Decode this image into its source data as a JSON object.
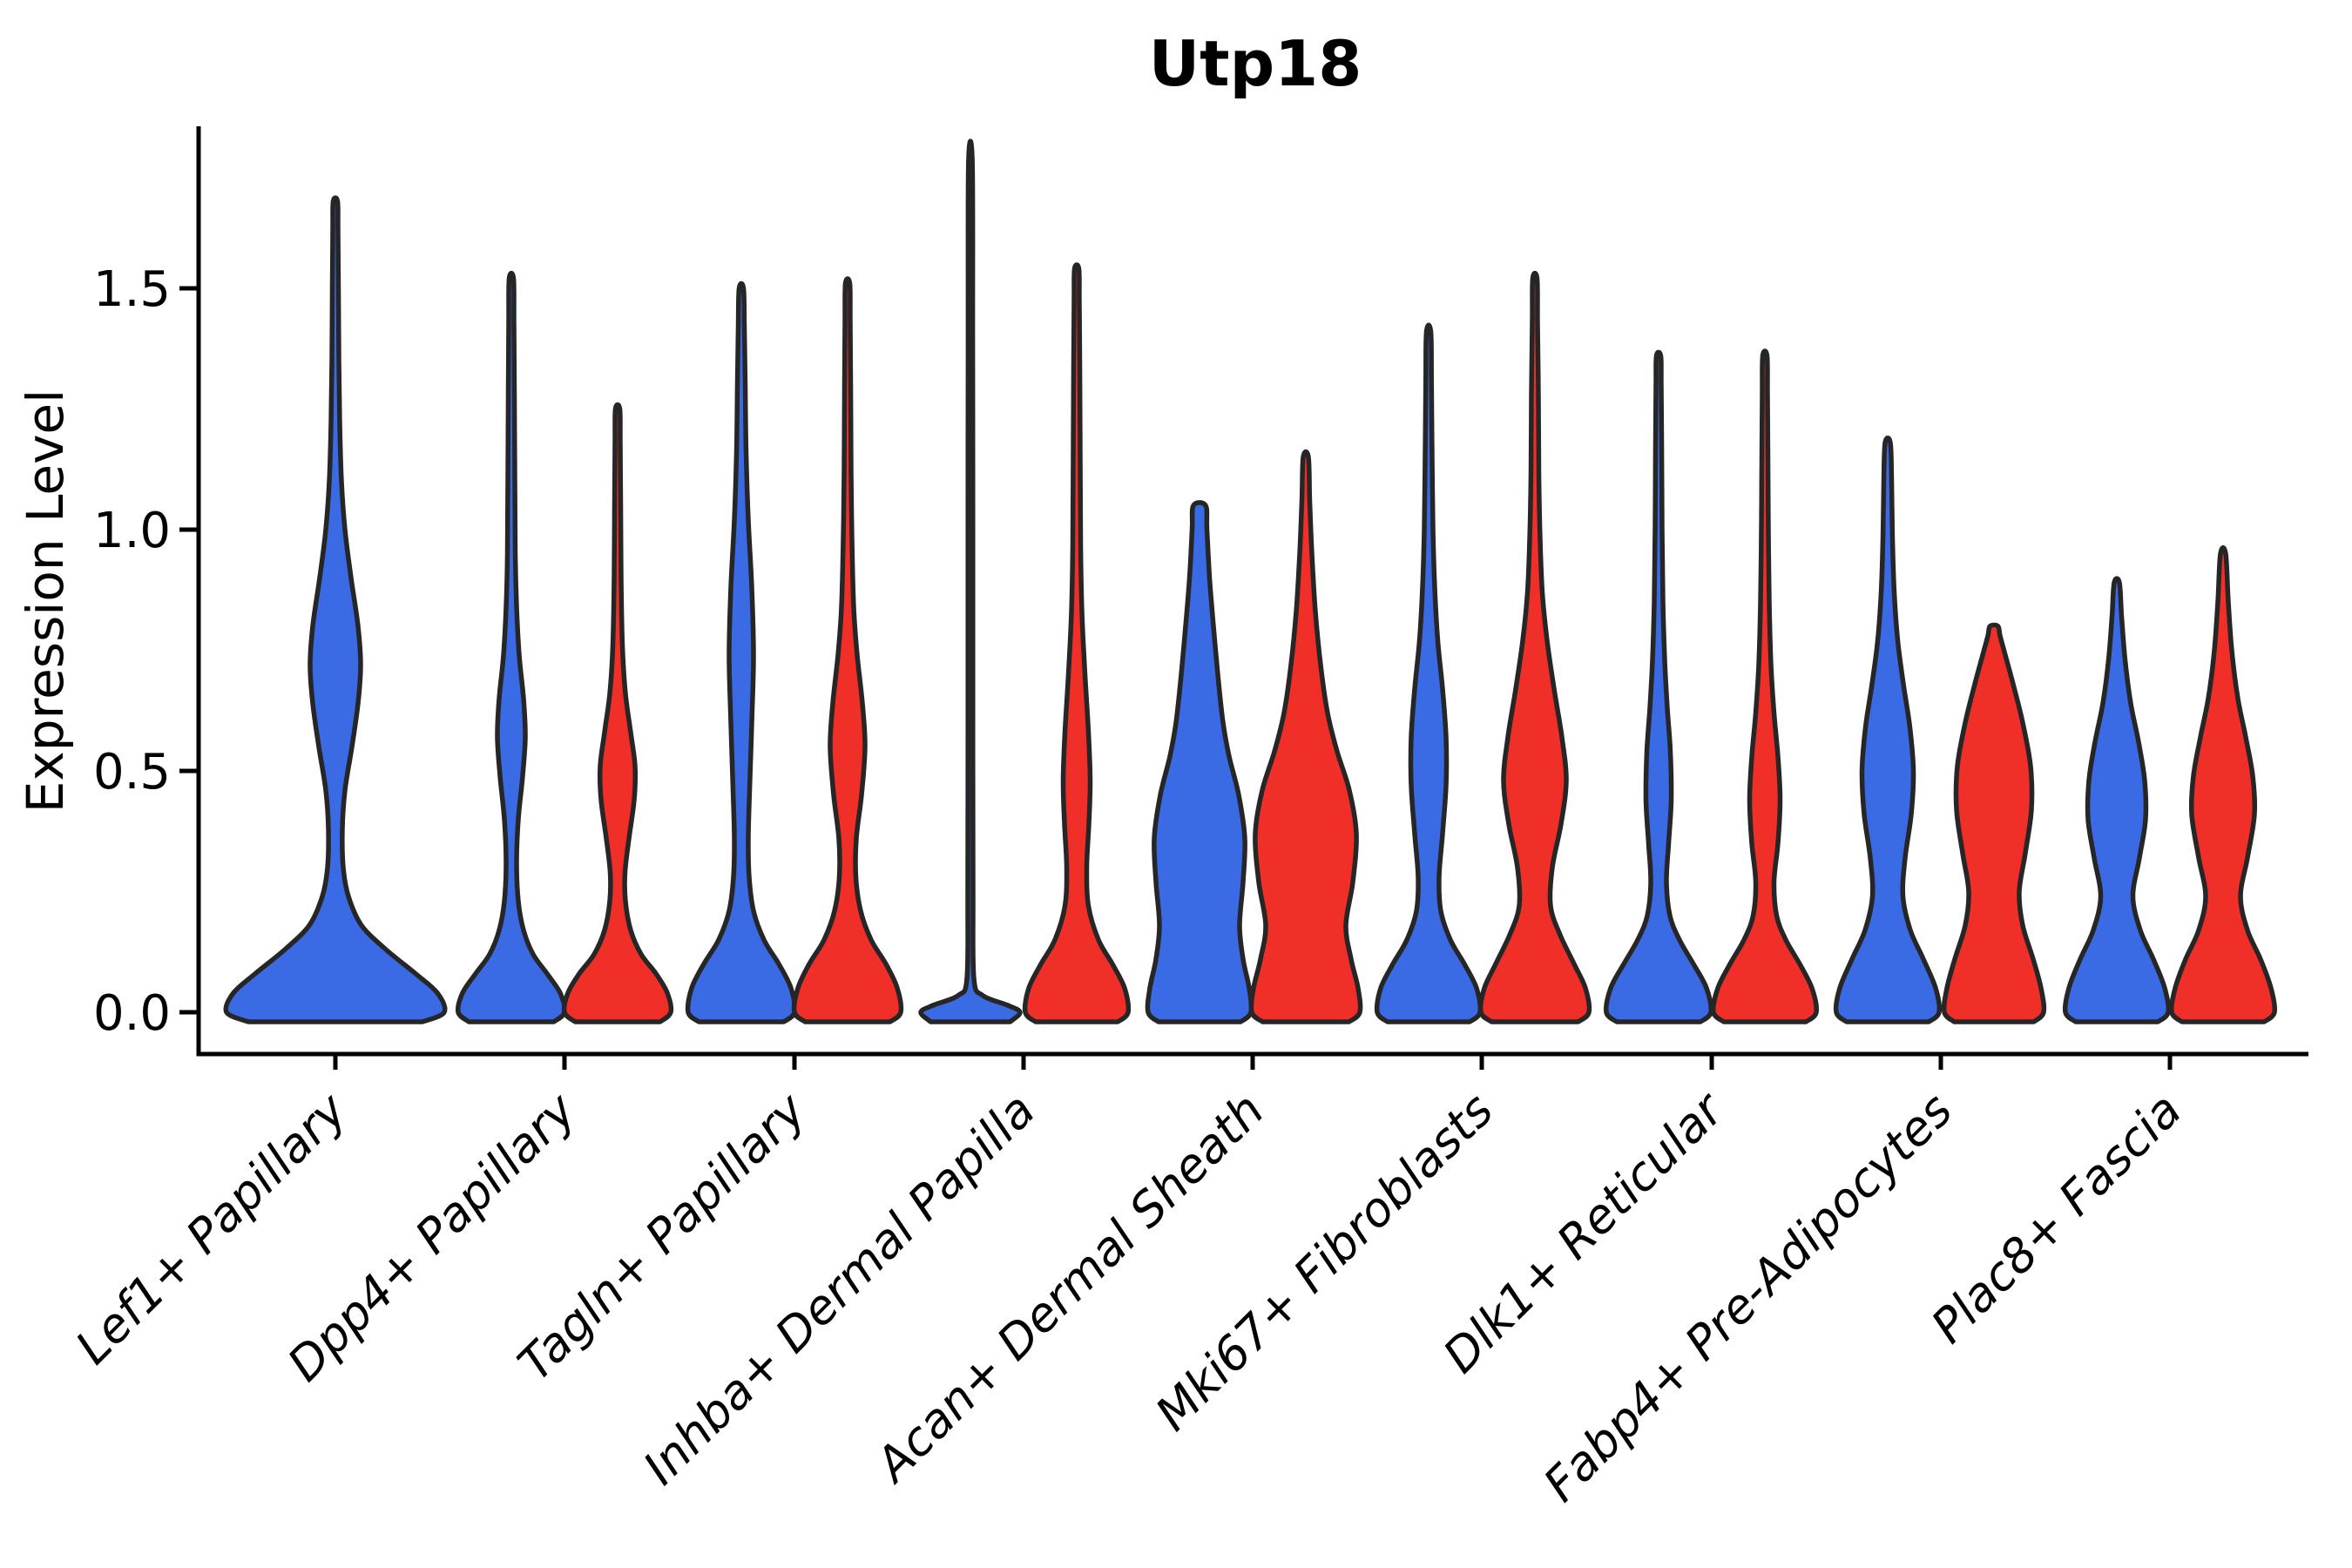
{
  "figure": {
    "background": "#ffffff",
    "axis_color": "#000000",
    "violin_edge_color": "#262626"
  },
  "chart_data": {
    "type": "violin",
    "title": "Utp18",
    "xlabel": "",
    "ylabel": "Expression Level",
    "ylim": [
      -0.09,
      1.84
    ],
    "y_ticks": [
      "0.0",
      "0.5",
      "1.0",
      "1.5"
    ],
    "grid": false,
    "legend": "none",
    "categories": [
      "Lef1+ Papillary",
      "Dpp4+ Papillary",
      "Tagln+ Papillary",
      "Inhba+ Dermal Papilla",
      "Acan+ Dermal Sheath",
      "Mki67+ Fibroblasts",
      "Dlk1+ Reticular",
      "Fabp4+ Pre-Adipocytes",
      "Plac8+ Fascia"
    ],
    "groups": [
      {
        "id": "blue",
        "color": "#3B6AE5"
      },
      {
        "id": "red",
        "color": "#F03028"
      }
    ],
    "profile_format": "[expression_level, half_width_px]",
    "violins": [
      {
        "category": "Lef1+ Papillary",
        "group": "blue",
        "span": "full",
        "peak_expression": 1.68,
        "profile": [
          [
            0,
            125
          ],
          [
            0.04,
            117
          ],
          [
            0.08,
            92
          ],
          [
            0.13,
            58
          ],
          [
            0.18,
            30
          ],
          [
            0.24,
            15
          ],
          [
            0.3,
            9
          ],
          [
            0.38,
            8
          ],
          [
            0.46,
            11
          ],
          [
            0.55,
            19
          ],
          [
            0.64,
            26
          ],
          [
            0.72,
            29
          ],
          [
            0.8,
            26
          ],
          [
            0.9,
            18
          ],
          [
            1.0,
            11
          ],
          [
            1.1,
            7
          ],
          [
            1.22,
            5
          ],
          [
            1.35,
            4
          ],
          [
            1.5,
            3.5
          ],
          [
            1.62,
            3
          ],
          [
            1.68,
            2.5
          ]
        ]
      },
      {
        "category": "Dpp4+ Papillary",
        "group": "blue",
        "span": "half",
        "peak_expression": 1.52,
        "profile": [
          [
            0,
            61
          ],
          [
            0.04,
            56
          ],
          [
            0.08,
            41
          ],
          [
            0.12,
            25
          ],
          [
            0.17,
            14
          ],
          [
            0.23,
            8
          ],
          [
            0.31,
            6
          ],
          [
            0.4,
            8
          ],
          [
            0.49,
            13
          ],
          [
            0.57,
            16
          ],
          [
            0.65,
            14
          ],
          [
            0.74,
            9
          ],
          [
            0.84,
            6
          ],
          [
            0.95,
            4.5
          ],
          [
            1.1,
            4
          ],
          [
            1.28,
            3.5
          ],
          [
            1.43,
            3
          ],
          [
            1.52,
            2.5
          ]
        ]
      },
      {
        "category": "Dpp4+ Papillary",
        "group": "red",
        "span": "half",
        "peak_expression": 1.25,
        "profile": [
          [
            0,
            61
          ],
          [
            0.04,
            57
          ],
          [
            0.08,
            44
          ],
          [
            0.12,
            27
          ],
          [
            0.17,
            15
          ],
          [
            0.23,
            9
          ],
          [
            0.29,
            8.5
          ],
          [
            0.36,
            13
          ],
          [
            0.44,
            19
          ],
          [
            0.51,
            20
          ],
          [
            0.58,
            15
          ],
          [
            0.66,
            9
          ],
          [
            0.76,
            5.5
          ],
          [
            0.9,
            4
          ],
          [
            1.05,
            3.5
          ],
          [
            1.18,
            3
          ],
          [
            1.25,
            2.5
          ]
        ]
      },
      {
        "category": "Tagln+ Papillary",
        "group": "blue",
        "span": "half",
        "peak_expression": 1.5,
        "profile": [
          [
            0,
            61
          ],
          [
            0.05,
            57
          ],
          [
            0.1,
            43
          ],
          [
            0.15,
            26
          ],
          [
            0.21,
            14
          ],
          [
            0.28,
            9
          ],
          [
            0.36,
            8
          ],
          [
            0.46,
            9.5
          ],
          [
            0.6,
            12
          ],
          [
            0.74,
            14
          ],
          [
            0.88,
            12
          ],
          [
            1.02,
            8
          ],
          [
            1.16,
            5.5
          ],
          [
            1.3,
            4.5
          ],
          [
            1.42,
            3.5
          ],
          [
            1.5,
            2.5
          ]
        ]
      },
      {
        "category": "Tagln+ Papillary",
        "group": "red",
        "span": "half",
        "peak_expression": 1.51,
        "profile": [
          [
            0,
            61
          ],
          [
            0.05,
            57
          ],
          [
            0.1,
            44
          ],
          [
            0.15,
            27
          ],
          [
            0.21,
            15
          ],
          [
            0.28,
            9.5
          ],
          [
            0.36,
            10
          ],
          [
            0.45,
            16
          ],
          [
            0.55,
            20
          ],
          [
            0.64,
            17
          ],
          [
            0.74,
            11
          ],
          [
            0.84,
            7
          ],
          [
            0.98,
            5
          ],
          [
            1.12,
            4
          ],
          [
            1.3,
            3.5
          ],
          [
            1.43,
            3
          ],
          [
            1.51,
            2.5
          ]
        ]
      },
      {
        "category": "Inhba+ Dermal Papilla",
        "group": "blue",
        "span": "half",
        "peak_expression": 1.76,
        "profile": [
          [
            0,
            57
          ],
          [
            0.015,
            42
          ],
          [
            0.035,
            14
          ],
          [
            0.07,
            4
          ],
          [
            0.25,
            3
          ],
          [
            0.6,
            2.8
          ],
          [
            1.0,
            2.8
          ],
          [
            1.4,
            2.6
          ],
          [
            1.76,
            2.2
          ]
        ]
      },
      {
        "category": "Inhba+ Dermal Papilla",
        "group": "red",
        "span": "half",
        "peak_expression": 1.54,
        "profile": [
          [
            0,
            59
          ],
          [
            0.05,
            55
          ],
          [
            0.1,
            41
          ],
          [
            0.15,
            25
          ],
          [
            0.22,
            13.5
          ],
          [
            0.3,
            11.5
          ],
          [
            0.39,
            14
          ],
          [
            0.48,
            15.5
          ],
          [
            0.58,
            13.5
          ],
          [
            0.7,
            9.5
          ],
          [
            0.83,
            6
          ],
          [
            0.97,
            4.5
          ],
          [
            1.15,
            4
          ],
          [
            1.35,
            3.5
          ],
          [
            1.47,
            3
          ],
          [
            1.54,
            2.5
          ]
        ]
      },
      {
        "category": "Acan+ Dermal Sheath",
        "group": "blue",
        "span": "half",
        "peak_expression": 1.05,
        "profile": [
          [
            0,
            59
          ],
          [
            0.05,
            57
          ],
          [
            0.11,
            50
          ],
          [
            0.18,
            46
          ],
          [
            0.27,
            50
          ],
          [
            0.36,
            52
          ],
          [
            0.45,
            45
          ],
          [
            0.53,
            34
          ],
          [
            0.6,
            27
          ],
          [
            0.7,
            21
          ],
          [
            0.8,
            16
          ],
          [
            0.9,
            11.5
          ],
          [
            1.0,
            8.5
          ],
          [
            1.05,
            7
          ]
        ]
      },
      {
        "category": "Acan+ Dermal Sheath",
        "group": "red",
        "span": "half",
        "peak_expression": 1.15,
        "profile": [
          [
            0,
            62
          ],
          [
            0.05,
            60
          ],
          [
            0.11,
            52
          ],
          [
            0.18,
            46
          ],
          [
            0.27,
            54
          ],
          [
            0.37,
            58
          ],
          [
            0.46,
            50
          ],
          [
            0.54,
            36
          ],
          [
            0.62,
            25
          ],
          [
            0.72,
            17
          ],
          [
            0.83,
            11
          ],
          [
            0.95,
            7
          ],
          [
            1.06,
            4.5
          ],
          [
            1.15,
            3
          ]
        ]
      },
      {
        "category": "Mki67+ Fibroblasts",
        "group": "blue",
        "span": "half",
        "peak_expression": 1.41,
        "profile": [
          [
            0,
            59
          ],
          [
            0.05,
            55
          ],
          [
            0.1,
            41
          ],
          [
            0.15,
            25
          ],
          [
            0.21,
            14
          ],
          [
            0.28,
            12
          ],
          [
            0.37,
            16
          ],
          [
            0.47,
            20
          ],
          [
            0.57,
            20
          ],
          [
            0.67,
            16
          ],
          [
            0.77,
            10.5
          ],
          [
            0.88,
            7
          ],
          [
            1.0,
            5
          ],
          [
            1.15,
            4
          ],
          [
            1.3,
            3.3
          ],
          [
            1.41,
            2.5
          ]
        ]
      },
      {
        "category": "Mki67+ Fibroblasts",
        "group": "red",
        "span": "half",
        "peak_expression": 1.52,
        "profile": [
          [
            0,
            62
          ],
          [
            0.05,
            58
          ],
          [
            0.1,
            45
          ],
          [
            0.16,
            29
          ],
          [
            0.22,
            18
          ],
          [
            0.3,
            20
          ],
          [
            0.39,
            30
          ],
          [
            0.48,
            36
          ],
          [
            0.57,
            31
          ],
          [
            0.67,
            22
          ],
          [
            0.77,
            14
          ],
          [
            0.87,
            8.5
          ],
          [
            0.98,
            6
          ],
          [
            1.12,
            4.5
          ],
          [
            1.28,
            4
          ],
          [
            1.43,
            3
          ],
          [
            1.52,
            2.5
          ]
        ]
      },
      {
        "category": "Dlk1+ Reticular",
        "group": "blue",
        "span": "half",
        "peak_expression": 1.36,
        "profile": [
          [
            0,
            60
          ],
          [
            0.05,
            55
          ],
          [
            0.1,
            40
          ],
          [
            0.15,
            24
          ],
          [
            0.2,
            13
          ],
          [
            0.27,
            9
          ],
          [
            0.35,
            11.5
          ],
          [
            0.44,
            14.5
          ],
          [
            0.54,
            13.5
          ],
          [
            0.63,
            10
          ],
          [
            0.73,
            7
          ],
          [
            0.85,
            5
          ],
          [
            1.0,
            4
          ],
          [
            1.18,
            3.5
          ],
          [
            1.3,
            3
          ],
          [
            1.36,
            2.5
          ]
        ]
      },
      {
        "category": "Dlk1+ Reticular",
        "group": "red",
        "span": "half",
        "peak_expression": 1.36,
        "profile": [
          [
            0,
            59
          ],
          [
            0.05,
            54
          ],
          [
            0.1,
            40
          ],
          [
            0.15,
            24
          ],
          [
            0.2,
            13.5
          ],
          [
            0.27,
            10.5
          ],
          [
            0.35,
            15
          ],
          [
            0.44,
            17.5
          ],
          [
            0.53,
            15
          ],
          [
            0.62,
            10.5
          ],
          [
            0.72,
            7
          ],
          [
            0.85,
            5
          ],
          [
            1.0,
            4
          ],
          [
            1.15,
            3.5
          ],
          [
            1.28,
            3
          ],
          [
            1.36,
            2.5
          ]
        ]
      },
      {
        "category": "Fabp4+ Pre-Adipocytes",
        "group": "blue",
        "span": "half",
        "peak_expression": 1.18,
        "profile": [
          [
            0,
            59
          ],
          [
            0.05,
            55
          ],
          [
            0.11,
            41
          ],
          [
            0.17,
            26
          ],
          [
            0.24,
            17.5
          ],
          [
            0.32,
            20
          ],
          [
            0.41,
            27
          ],
          [
            0.5,
            29.5
          ],
          [
            0.59,
            25.5
          ],
          [
            0.68,
            18
          ],
          [
            0.77,
            11.5
          ],
          [
            0.87,
            7.5
          ],
          [
            0.98,
            5.5
          ],
          [
            1.1,
            4.5
          ],
          [
            1.18,
            3
          ]
        ]
      },
      {
        "category": "Fabp4+ Pre-Adipocytes",
        "group": "red",
        "span": "half",
        "peak_expression": 0.8,
        "profile": [
          [
            0,
            57
          ],
          [
            0.05,
            54
          ],
          [
            0.11,
            45
          ],
          [
            0.18,
            33
          ],
          [
            0.25,
            29
          ],
          [
            0.33,
            36
          ],
          [
            0.42,
            43
          ],
          [
            0.51,
            42
          ],
          [
            0.6,
            33
          ],
          [
            0.68,
            22
          ],
          [
            0.74,
            13
          ],
          [
            0.78,
            7
          ],
          [
            0.8,
            4.5
          ]
        ]
      },
      {
        "category": "Plac8+ Fascia",
        "group": "blue",
        "span": "half",
        "peak_expression": 0.89,
        "profile": [
          [
            0,
            59
          ],
          [
            0.05,
            55
          ],
          [
            0.11,
            42
          ],
          [
            0.17,
            27
          ],
          [
            0.24,
            18.5
          ],
          [
            0.32,
            26
          ],
          [
            0.4,
            33
          ],
          [
            0.48,
            32
          ],
          [
            0.56,
            25
          ],
          [
            0.64,
            16
          ],
          [
            0.73,
            9.5
          ],
          [
            0.82,
            5.5
          ],
          [
            0.89,
            3
          ]
        ]
      },
      {
        "category": "Plac8+ Fascia",
        "group": "red",
        "span": "half",
        "peak_expression": 0.95,
        "profile": [
          [
            0,
            59
          ],
          [
            0.05,
            55
          ],
          [
            0.11,
            43
          ],
          [
            0.17,
            28
          ],
          [
            0.24,
            20
          ],
          [
            0.32,
            28
          ],
          [
            0.41,
            36
          ],
          [
            0.49,
            34
          ],
          [
            0.57,
            26
          ],
          [
            0.65,
            17
          ],
          [
            0.75,
            10
          ],
          [
            0.85,
            6
          ],
          [
            0.95,
            3
          ]
        ]
      }
    ]
  }
}
